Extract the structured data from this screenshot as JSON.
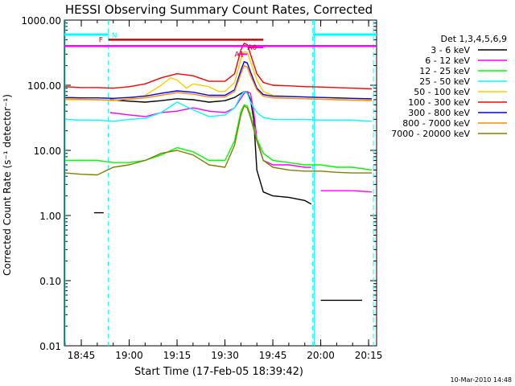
{
  "chart_data": {
    "type": "line",
    "title": "HESSI Observing Summary Count Rates, Corrected",
    "xlabel": "Start Time (17-Feb-05 18:39:42)",
    "ylabel": "Corrected Count Rate (s⁻¹ detector⁻¹)",
    "yscale": "log",
    "ylim": [
      0.01,
      1000
    ],
    "xlim": [
      "18:39:42",
      "20:17:30"
    ],
    "x_ticks": [
      "18:45",
      "19:00",
      "19:15",
      "19:30",
      "19:45",
      "20:00",
      "20:15"
    ],
    "y_ticks": [
      "0.01",
      "0.10",
      "1.00",
      "10.00",
      "100.00",
      "1000.00"
    ],
    "grid": false,
    "legend_position": "right",
    "legend_title": "Det 1,3,4,5,6,9",
    "footer_date": "10-Mar-2010 14:48",
    "colors": {
      "n_marker": "#00ffff",
      "f_marker": "#d40000",
      "a_marker": "#ff00ff",
      "boundary": "#00ffff"
    },
    "markers": {
      "night": {
        "label": "N",
        "intervals": [
          [
            "18:39:42",
            "18:53:30"
          ],
          [
            "19:57:30",
            "20:17:30"
          ]
        ],
        "level": 600
      },
      "flare": {
        "label": "F",
        "intervals": [
          [
            "18:53:30",
            "19:42:00"
          ]
        ],
        "level": 500
      },
      "saa": {
        "label": "",
        "intervals": [
          [
            "18:39:42",
            "20:17:30"
          ]
        ],
        "level": 400
      },
      "a0": {
        "label": "A0",
        "intervals": [
          [
            "19:37:00",
            "19:42:00"
          ]
        ],
        "level": 380
      },
      "a1": {
        "label": "A1",
        "intervals": [
          [
            "19:34:00",
            "19:37:00"
          ]
        ],
        "level": 300
      }
    },
    "boundaries": [
      "18:53:30",
      "19:57:30"
    ],
    "series": [
      {
        "name": "3 - 6 keV",
        "color": "#000000",
        "x": [
          "18:49",
          "18:52",
          "18:53:30",
          "18:54",
          "19:00",
          "19:05",
          "19:10",
          "19:15",
          "19:20",
          "19:25",
          "19:30",
          "19:33",
          "19:36",
          "19:37",
          "19:38",
          "19:39",
          "19:40",
          "19:42",
          "19:45",
          "19:50",
          "19:55",
          "19:57",
          "19:57:30",
          "20:00",
          "20:05",
          "20:10",
          "20:13"
        ],
        "y": [
          1.1,
          1.1,
          null,
          60,
          57,
          55,
          58,
          62,
          60,
          55,
          58,
          65,
          80,
          78,
          60,
          30,
          5,
          2.3,
          2.0,
          1.9,
          1.7,
          1.5,
          null,
          0.05,
          0.05,
          0.05,
          0.05
        ]
      },
      {
        "name": "6 - 12 keV",
        "color": "#ff00ff",
        "x": [
          "18:53:30",
          "18:54",
          "19:00",
          "19:05",
          "19:10",
          "19:15",
          "19:20",
          "19:25",
          "19:30",
          "19:33",
          "19:36",
          "19:37",
          "19:38",
          "19:39",
          "19:40",
          "19:42",
          "19:45",
          "19:50",
          "19:55",
          "19:57",
          "19:57:30",
          "20:00",
          "20:05",
          "20:10",
          "20:16"
        ],
        "y": [
          null,
          38,
          35,
          33,
          38,
          40,
          45,
          40,
          38,
          45,
          75,
          80,
          75,
          40,
          15,
          7,
          6,
          6,
          5.5,
          5.5,
          null,
          2.4,
          2.4,
          2.4,
          2.3
        ]
      },
      {
        "name": "12 - 25 keV",
        "color": "#00ff00",
        "x": [
          "18:40",
          "18:45",
          "18:50",
          "18:55",
          "19:00",
          "19:05",
          "19:10",
          "19:15",
          "19:20",
          "19:25",
          "19:30",
          "19:33",
          "19:35",
          "19:36",
          "19:37",
          "19:38",
          "19:40",
          "19:42",
          "19:45",
          "19:50",
          "19:55",
          "20:00",
          "20:05",
          "20:10",
          "20:16"
        ],
        "y": [
          7,
          7,
          7,
          6.5,
          6.5,
          7,
          8.5,
          11,
          9.5,
          7,
          7,
          14,
          40,
          50,
          48,
          35,
          15,
          9,
          7,
          6.5,
          6,
          6,
          5.5,
          5.5,
          5
        ]
      },
      {
        "name": "25 - 50 keV",
        "color": "#00ffff",
        "x": [
          "18:40",
          "18:45",
          "18:50",
          "18:55",
          "19:00",
          "19:05",
          "19:10",
          "19:15",
          "19:20",
          "19:25",
          "19:30",
          "19:33",
          "19:35",
          "19:36",
          "19:37",
          "19:38",
          "19:40",
          "19:42",
          "19:45",
          "19:50",
          "19:55",
          "20:00",
          "20:05",
          "20:10",
          "20:16"
        ],
        "y": [
          30,
          29,
          29,
          28,
          30,
          31,
          38,
          55,
          42,
          33,
          35,
          45,
          70,
          80,
          75,
          55,
          38,
          32,
          30,
          30,
          30,
          29,
          29,
          29,
          28
        ]
      },
      {
        "name": "50 - 100 keV",
        "color": "#ffcc00",
        "x": [
          "18:40",
          "18:45",
          "18:50",
          "18:55",
          "19:00",
          "19:05",
          "19:10",
          "19:13",
          "19:15",
          "19:18",
          "19:20",
          "19:25",
          "19:28",
          "19:30",
          "19:33",
          "19:35",
          "19:36",
          "19:37",
          "19:38",
          "19:40",
          "19:42",
          "19:45",
          "19:50",
          "19:55",
          "20:00",
          "20:05",
          "20:10",
          "20:16"
        ],
        "y": [
          60,
          60,
          60,
          58,
          62,
          70,
          100,
          130,
          120,
          90,
          105,
          95,
          80,
          80,
          110,
          250,
          330,
          320,
          230,
          120,
          80,
          70,
          68,
          66,
          65,
          63,
          62,
          60
        ]
      },
      {
        "name": "100 - 300 keV",
        "color": "#ff0000",
        "x": [
          "18:40",
          "18:45",
          "18:50",
          "18:55",
          "19:00",
          "19:05",
          "19:10",
          "19:15",
          "19:20",
          "19:25",
          "19:30",
          "19:33",
          "19:35",
          "19:36",
          "19:37",
          "19:38",
          "19:40",
          "19:42",
          "19:45",
          "19:50",
          "19:55",
          "20:00",
          "20:05",
          "20:10",
          "20:16"
        ],
        "y": [
          95,
          92,
          92,
          90,
          95,
          105,
          130,
          150,
          140,
          115,
          115,
          150,
          350,
          440,
          420,
          300,
          150,
          110,
          100,
          98,
          95,
          94,
          92,
          90,
          88
        ]
      },
      {
        "name": "300 - 800 keV",
        "color": "#0000ff",
        "x": [
          "18:40",
          "18:45",
          "18:50",
          "18:55",
          "19:00",
          "19:05",
          "19:10",
          "19:15",
          "19:20",
          "19:25",
          "19:30",
          "19:33",
          "19:35",
          "19:36",
          "19:37",
          "19:38",
          "19:40",
          "19:42",
          "19:45",
          "19:50",
          "19:55",
          "20:00",
          "20:05",
          "20:10",
          "20:16"
        ],
        "y": [
          65,
          64,
          64,
          63,
          65,
          68,
          75,
          82,
          78,
          70,
          70,
          85,
          170,
          230,
          220,
          160,
          90,
          72,
          68,
          67,
          66,
          65,
          64,
          63,
          62
        ]
      },
      {
        "name": "800 - 7000 keV",
        "color": "#ff8c00",
        "x": [
          "18:40",
          "18:45",
          "18:50",
          "18:55",
          "19:00",
          "19:05",
          "19:10",
          "19:15",
          "19:20",
          "19:25",
          "19:30",
          "19:33",
          "19:35",
          "19:36",
          "19:37",
          "19:38",
          "19:40",
          "19:42",
          "19:45",
          "19:50",
          "19:55",
          "20:00",
          "20:05",
          "20:10",
          "20:16"
        ],
        "y": [
          62,
          61,
          60,
          59,
          61,
          64,
          70,
          77,
          73,
          66,
          66,
          80,
          150,
          200,
          190,
          140,
          85,
          68,
          64,
          63,
          62,
          61,
          60,
          59,
          58
        ]
      },
      {
        "name": "7000 - 20000 keV",
        "color": "#808000",
        "x": [
          "18:40",
          "18:45",
          "18:50",
          "18:55",
          "19:00",
          "19:05",
          "19:10",
          "19:15",
          "19:20",
          "19:25",
          "19:30",
          "19:33",
          "19:35",
          "19:36",
          "19:37",
          "19:38",
          "19:40",
          "19:42",
          "19:45",
          "19:50",
          "19:55",
          "20:00",
          "20:05",
          "20:10",
          "20:16"
        ],
        "y": [
          4.5,
          4.3,
          4.2,
          5.5,
          6,
          7,
          9,
          10,
          8.5,
          6,
          5.5,
          12,
          35,
          48,
          45,
          32,
          14,
          7,
          5.5,
          5,
          4.8,
          4.8,
          4.6,
          4.5,
          4.5
        ]
      }
    ]
  }
}
